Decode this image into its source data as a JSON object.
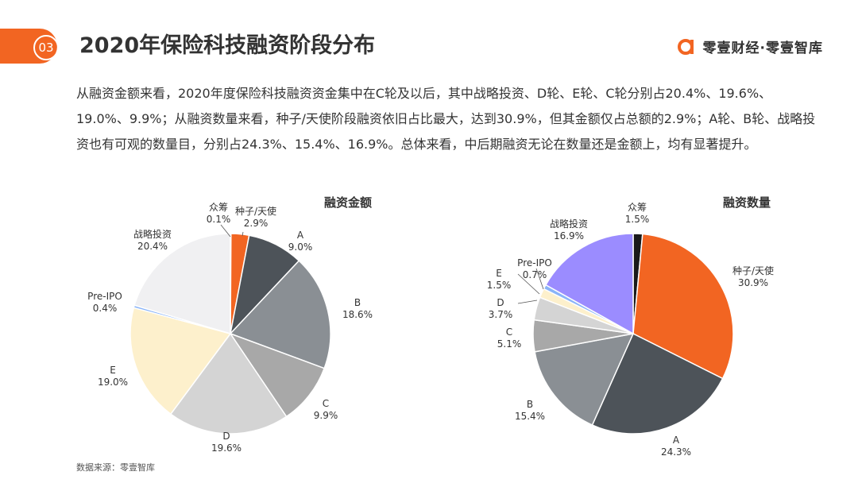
{
  "header": {
    "section_number": "03",
    "title": "2020年保险科技融资阶段分布",
    "brand_name": "零壹财经·零壹智库",
    "accent_color": "#f26522"
  },
  "summary_text": "从融资金额来看，2020年度保险科技融资资金集中在C轮及以后，其中战略投资、D轮、E轮、C轮分别占20.4%、19.6%、19.0%、9.9%；从融资数量来看，种子/天使阶段融资依旧占比最大，达到30.9%，但其金额仅占总额的2.9%；A轮、B轮、战略投资也有可观的数量目，分别占24.3%、15.4%、16.9%。总体来看，中后期融资无论在数量还是金额上，均有显著提升。",
  "chart_data": [
    {
      "type": "pie",
      "title": "融资金额",
      "slices": [
        {
          "label": "众筹",
          "value": 0.1,
          "display": "0.1%",
          "color": "#1a1a1a"
        },
        {
          "label": "种子/天使",
          "value": 2.9,
          "display": "2.9%",
          "color": "#f26522"
        },
        {
          "label": "A",
          "value": 9.0,
          "display": "9.0%",
          "color": "#4d5359"
        },
        {
          "label": "B",
          "value": 18.6,
          "display": "18.6%",
          "color": "#8a8f94"
        },
        {
          "label": "C",
          "value": 9.9,
          "display": "9.9%",
          "color": "#a8a8a8"
        },
        {
          "label": "D",
          "value": 19.6,
          "display": "19.6%",
          "color": "#d4d4d4"
        },
        {
          "label": "E",
          "value": 19.0,
          "display": "19.0%",
          "color": "#fdf0cc"
        },
        {
          "label": "Pre-IPO",
          "value": 0.4,
          "display": "0.4%",
          "color": "#8ab4f8"
        },
        {
          "label": "战略投资",
          "value": 20.4,
          "display": "20.4%",
          "color": "#f0f0f2"
        }
      ]
    },
    {
      "type": "pie",
      "title": "融资数量",
      "slices": [
        {
          "label": "众筹",
          "value": 1.5,
          "display": "1.5%",
          "color": "#1a1a1a"
        },
        {
          "label": "种子/天使",
          "value": 30.9,
          "display": "30.9%",
          "color": "#f26522"
        },
        {
          "label": "A",
          "value": 24.3,
          "display": "24.3%",
          "color": "#4d5359"
        },
        {
          "label": "B",
          "value": 15.4,
          "display": "15.4%",
          "color": "#8a8f94"
        },
        {
          "label": "C",
          "value": 5.1,
          "display": "5.1%",
          "color": "#a8a8a8"
        },
        {
          "label": "D",
          "value": 3.7,
          "display": "3.7%",
          "color": "#d4d4d4"
        },
        {
          "label": "E",
          "value": 1.5,
          "display": "1.5%",
          "color": "#fdf0cc"
        },
        {
          "label": "Pre-IPO",
          "value": 0.7,
          "display": "0.7%",
          "color": "#8ab4f8"
        },
        {
          "label": "战略投资",
          "value": 16.9,
          "display": "16.9%",
          "color": "#9b8cff"
        }
      ]
    }
  ],
  "source": "数据来源：零壹智库"
}
